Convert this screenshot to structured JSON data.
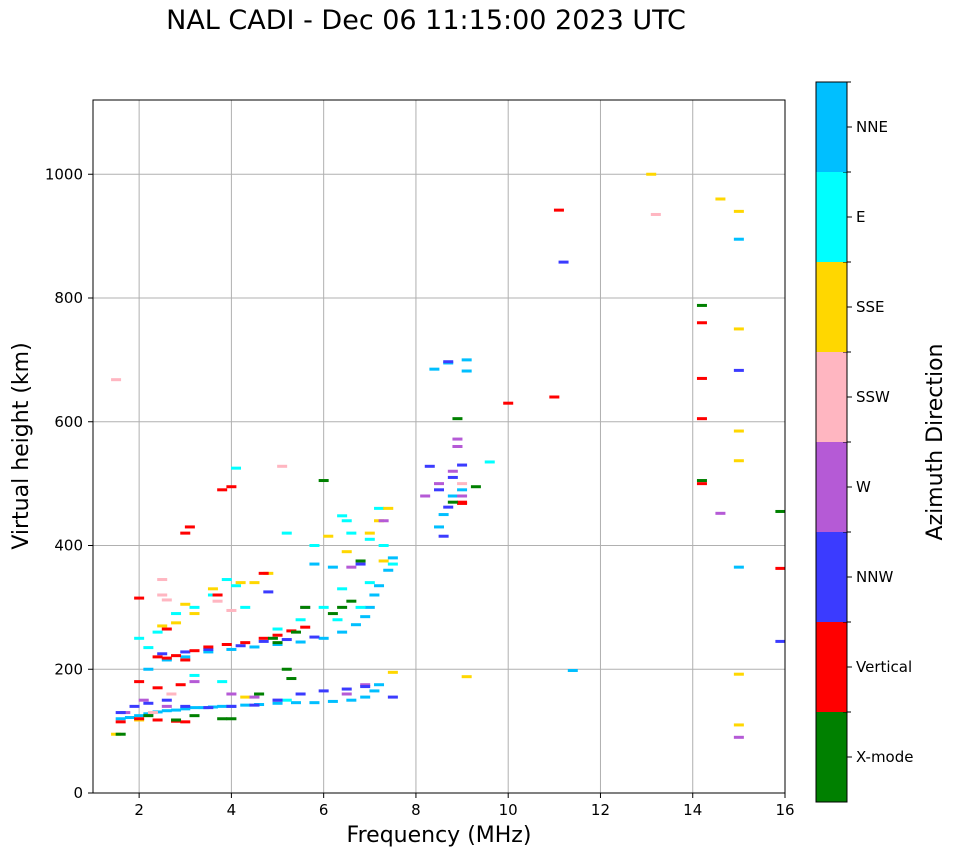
{
  "chart_data": {
    "type": "scatter",
    "title": "NAL CADI - Dec 06 11:15:00 2023 UTC",
    "xlabel": "Frequency (MHz)",
    "ylabel": "Virtual height (km)",
    "xlim": [
      1.0,
      16.0
    ],
    "ylim": [
      0,
      1120
    ],
    "xticks": [
      2,
      4,
      6,
      8,
      10,
      12,
      14,
      16
    ],
    "yticks": [
      0,
      200,
      400,
      600,
      800,
      1000
    ],
    "grid": true,
    "colorbar": {
      "label": "Azimuth Direction",
      "categories": [
        {
          "name": "X-mode",
          "color": "#008000"
        },
        {
          "name": "Vertical",
          "color": "#ff0000"
        },
        {
          "name": "NNW",
          "color": "#3b3bff"
        },
        {
          "name": "W",
          "color": "#b55ad6"
        },
        {
          "name": "SSW",
          "color": "#ffb6c1"
        },
        {
          "name": "SSE",
          "color": "#ffd700"
        },
        {
          "name": "E",
          "color": "#00ffff"
        },
        {
          "name": "NNE",
          "color": "#00bfff"
        }
      ]
    },
    "series": [
      {
        "name": "NNE",
        "points": [
          [
            1.6,
            120
          ],
          [
            1.8,
            122
          ],
          [
            2.0,
            125
          ],
          [
            2.2,
            128
          ],
          [
            2.4,
            131
          ],
          [
            2.6,
            133
          ],
          [
            2.8,
            134
          ],
          [
            3.0,
            136
          ],
          [
            3.2,
            138
          ],
          [
            3.4,
            138
          ],
          [
            3.6,
            139
          ],
          [
            3.8,
            140
          ],
          [
            4.0,
            140
          ],
          [
            4.3,
            142
          ],
          [
            4.6,
            143
          ],
          [
            5.0,
            145
          ],
          [
            5.4,
            146
          ],
          [
            5.8,
            146
          ],
          [
            6.2,
            148
          ],
          [
            6.6,
            150
          ],
          [
            6.9,
            155
          ],
          [
            7.1,
            165
          ],
          [
            7.2,
            175
          ],
          [
            2.2,
            200
          ],
          [
            2.6,
            215
          ],
          [
            3.0,
            220
          ],
          [
            3.5,
            228
          ],
          [
            4.0,
            232
          ],
          [
            4.5,
            236
          ],
          [
            5.0,
            240
          ],
          [
            5.5,
            244
          ],
          [
            6.0,
            250
          ],
          [
            6.4,
            260
          ],
          [
            6.7,
            272
          ],
          [
            6.9,
            285
          ],
          [
            7.0,
            300
          ],
          [
            7.1,
            320
          ],
          [
            7.2,
            335
          ],
          [
            7.4,
            360
          ],
          [
            7.5,
            380
          ],
          [
            8.5,
            430
          ],
          [
            8.6,
            450
          ],
          [
            8.8,
            480
          ],
          [
            9.0,
            490
          ],
          [
            8.7,
            695
          ],
          [
            9.1,
            700
          ],
          [
            8.4,
            685
          ],
          [
            9.1,
            682
          ],
          [
            15.0,
            365
          ],
          [
            15.0,
            895
          ],
          [
            11.4,
            198
          ],
          [
            5.8,
            370
          ],
          [
            6.2,
            365
          ]
        ]
      },
      {
        "name": "E",
        "points": [
          [
            2.0,
            250
          ],
          [
            2.4,
            260
          ],
          [
            2.8,
            290
          ],
          [
            3.2,
            300
          ],
          [
            3.6,
            320
          ],
          [
            3.9,
            345
          ],
          [
            4.1,
            335
          ],
          [
            4.3,
            300
          ],
          [
            5.0,
            265
          ],
          [
            5.5,
            280
          ],
          [
            6.0,
            300
          ],
          [
            6.4,
            330
          ],
          [
            6.4,
            448
          ],
          [
            6.6,
            420
          ],
          [
            7.0,
            410
          ],
          [
            7.3,
            400
          ],
          [
            7.5,
            370
          ],
          [
            5.2,
            420
          ],
          [
            5.8,
            400
          ],
          [
            6.5,
            440
          ],
          [
            7.2,
            460
          ],
          [
            4.1,
            525
          ],
          [
            9.6,
            535
          ],
          [
            2.2,
            235
          ],
          [
            3.2,
            190
          ],
          [
            3.8,
            180
          ],
          [
            4.6,
            160
          ],
          [
            5.2,
            150
          ],
          [
            6.3,
            280
          ],
          [
            6.8,
            300
          ],
          [
            7.0,
            340
          ]
        ]
      },
      {
        "name": "SSE",
        "points": [
          [
            1.5,
            95
          ],
          [
            2.0,
            118
          ],
          [
            2.5,
            270
          ],
          [
            2.8,
            275
          ],
          [
            3.0,
            305
          ],
          [
            3.6,
            330
          ],
          [
            4.2,
            340
          ],
          [
            4.5,
            340
          ],
          [
            4.8,
            355
          ],
          [
            6.1,
            415
          ],
          [
            6.5,
            390
          ],
          [
            7.0,
            420
          ],
          [
            7.2,
            440
          ],
          [
            7.4,
            460
          ],
          [
            7.5,
            195
          ],
          [
            9.1,
            188
          ],
          [
            13.1,
            1000
          ],
          [
            14.6,
            960
          ],
          [
            15.0,
            940
          ],
          [
            15.0,
            750
          ],
          [
            15.0,
            585
          ],
          [
            15.0,
            537
          ],
          [
            15.0,
            192
          ],
          [
            15.0,
            110
          ],
          [
            3.2,
            290
          ],
          [
            4.3,
            155
          ],
          [
            7.3,
            375
          ]
        ]
      },
      {
        "name": "SSW",
        "points": [
          [
            1.5,
            668
          ],
          [
            2.5,
            345
          ],
          [
            2.5,
            320
          ],
          [
            2.6,
            312
          ],
          [
            3.7,
            310
          ],
          [
            4.0,
            295
          ],
          [
            5.1,
            528
          ],
          [
            13.2,
            935
          ],
          [
            8.9,
            560
          ],
          [
            9.0,
            500
          ],
          [
            2.3,
            130
          ],
          [
            2.7,
            160
          ]
        ]
      },
      {
        "name": "W",
        "points": [
          [
            1.7,
            130
          ],
          [
            2.1,
            150
          ],
          [
            2.6,
            140
          ],
          [
            3.2,
            180
          ],
          [
            4.0,
            160
          ],
          [
            4.5,
            155
          ],
          [
            5.0,
            150
          ],
          [
            6.5,
            160
          ],
          [
            6.9,
            175
          ],
          [
            8.2,
            480
          ],
          [
            8.5,
            500
          ],
          [
            8.8,
            520
          ],
          [
            8.9,
            560
          ],
          [
            8.9,
            572
          ],
          [
            9.0,
            480
          ],
          [
            14.6,
            452
          ],
          [
            15.0,
            90
          ],
          [
            7.3,
            440
          ],
          [
            5.6,
            300
          ],
          [
            6.6,
            365
          ]
        ]
      },
      {
        "name": "NNW",
        "points": [
          [
            1.6,
            130
          ],
          [
            1.9,
            140
          ],
          [
            2.2,
            145
          ],
          [
            2.6,
            150
          ],
          [
            3.0,
            140
          ],
          [
            3.5,
            138
          ],
          [
            4.0,
            140
          ],
          [
            4.5,
            142
          ],
          [
            5.0,
            150
          ],
          [
            5.5,
            160
          ],
          [
            6.0,
            165
          ],
          [
            6.5,
            168
          ],
          [
            6.9,
            172
          ],
          [
            7.5,
            155
          ],
          [
            2.5,
            225
          ],
          [
            3.0,
            228
          ],
          [
            3.5,
            232
          ],
          [
            4.2,
            238
          ],
          [
            4.7,
            245
          ],
          [
            5.2,
            248
          ],
          [
            5.8,
            252
          ],
          [
            8.3,
            528
          ],
          [
            8.5,
            490
          ],
          [
            8.7,
            462
          ],
          [
            8.8,
            510
          ],
          [
            9.0,
            530
          ],
          [
            8.6,
            415
          ],
          [
            11.2,
            858
          ],
          [
            15.0,
            683
          ],
          [
            15.9,
            245
          ],
          [
            4.8,
            325
          ],
          [
            6.8,
            370
          ],
          [
            8.7,
            697
          ]
        ]
      },
      {
        "name": "Vertical",
        "points": [
          [
            1.6,
            115
          ],
          [
            2.0,
            120
          ],
          [
            2.4,
            118
          ],
          [
            2.8,
            116
          ],
          [
            3.0,
            115
          ],
          [
            2.0,
            315
          ],
          [
            3.0,
            420
          ],
          [
            3.1,
            430
          ],
          [
            3.8,
            490
          ],
          [
            4.0,
            495
          ],
          [
            2.4,
            220
          ],
          [
            2.6,
            218
          ],
          [
            2.8,
            222
          ],
          [
            3.0,
            215
          ],
          [
            3.2,
            230
          ],
          [
            3.5,
            236
          ],
          [
            3.9,
            240
          ],
          [
            4.3,
            243
          ],
          [
            4.7,
            250
          ],
          [
            5.0,
            255
          ],
          [
            5.3,
            262
          ],
          [
            5.6,
            268
          ],
          [
            2.0,
            180
          ],
          [
            2.4,
            170
          ],
          [
            2.9,
            175
          ],
          [
            10.0,
            630
          ],
          [
            11.0,
            640
          ],
          [
            11.1,
            942
          ],
          [
            14.2,
            605
          ],
          [
            14.2,
            500
          ],
          [
            14.2,
            760
          ],
          [
            14.2,
            670
          ],
          [
            15.9,
            363
          ],
          [
            9.0,
            468
          ],
          [
            9.0,
            470
          ],
          [
            4.7,
            355
          ],
          [
            2.6,
            265
          ],
          [
            3.7,
            320
          ]
        ]
      },
      {
        "name": "X-mode",
        "points": [
          [
            1.6,
            95
          ],
          [
            2.2,
            125
          ],
          [
            2.8,
            118
          ],
          [
            3.2,
            125
          ],
          [
            3.8,
            120
          ],
          [
            4.0,
            120
          ],
          [
            4.6,
            160
          ],
          [
            5.2,
            200
          ],
          [
            5.3,
            185
          ],
          [
            5.6,
            300
          ],
          [
            6.2,
            290
          ],
          [
            6.4,
            300
          ],
          [
            6.6,
            310
          ],
          [
            6.0,
            505
          ],
          [
            5.4,
            260
          ],
          [
            6.8,
            375
          ],
          [
            8.9,
            605
          ],
          [
            9.3,
            495
          ],
          [
            8.8,
            470
          ],
          [
            14.2,
            788
          ],
          [
            14.2,
            505
          ],
          [
            15.9,
            455
          ],
          [
            5.0,
            243
          ],
          [
            4.9,
            250
          ]
        ]
      }
    ]
  }
}
